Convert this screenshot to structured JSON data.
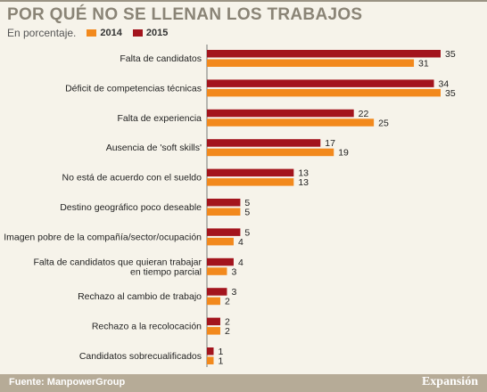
{
  "header": {
    "title": "POR QUÉ NO SE LLENAN LOS TRABAJOS",
    "subtitle": "En porcentaje."
  },
  "legend": [
    {
      "label": "2014",
      "color": "#f2891d"
    },
    {
      "label": "2015",
      "color": "#a3141d"
    }
  ],
  "footer": {
    "source": "Fuente: ManpowerGroup",
    "brand": "Expansión"
  },
  "chart_data": {
    "type": "bar",
    "orientation": "horizontal",
    "categories": [
      [
        "Falta de candidatos"
      ],
      [
        "Déficit de competencias técnicas"
      ],
      [
        "Falta de experiencia"
      ],
      [
        "Ausencia de 'soft skills'"
      ],
      [
        "No está de acuerdo con el sueldo"
      ],
      [
        "Destino geográfico poco deseable"
      ],
      [
        "Imagen pobre de la compañía/sector/ocupación"
      ],
      [
        "Falta de candidatos que quieran trabajar",
        "en tiempo parcial"
      ],
      [
        "Rechazo al cambio de trabajo"
      ],
      [
        "Rechazo a la recolocación"
      ],
      [
        "Candidatos sobrecualificados"
      ]
    ],
    "series": [
      {
        "name": "2015",
        "color": "#a3141d",
        "values": [
          35,
          34,
          22,
          17,
          13,
          5,
          5,
          4,
          3,
          2,
          1
        ]
      },
      {
        "name": "2014",
        "color": "#f2891d",
        "values": [
          31,
          35,
          25,
          19,
          13,
          5,
          4,
          3,
          2,
          2,
          1
        ]
      }
    ],
    "xlim": [
      0,
      35
    ]
  }
}
